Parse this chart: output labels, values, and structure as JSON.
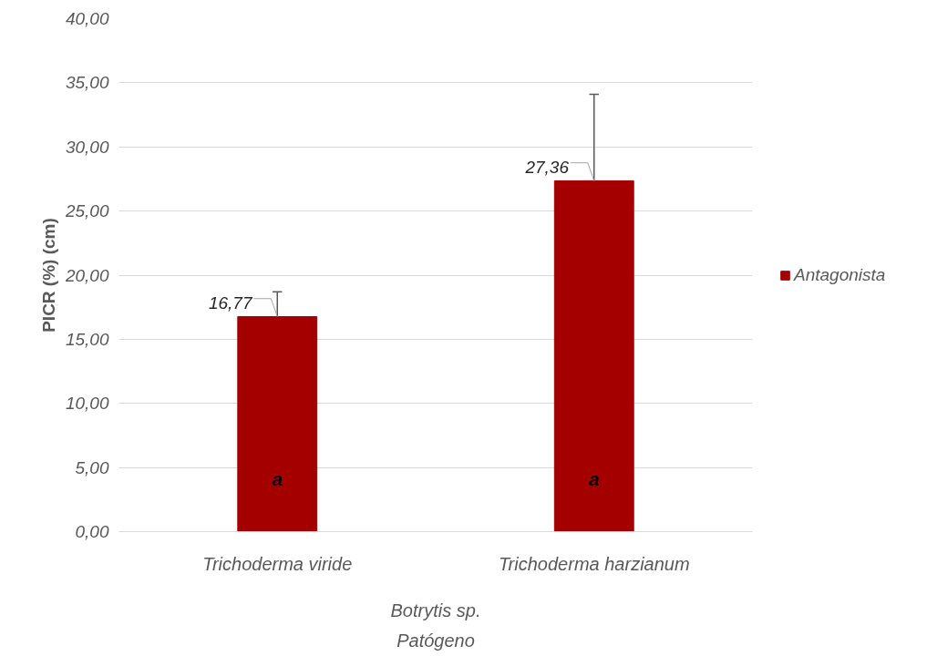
{
  "chart_data": {
    "type": "bar",
    "ylabel": "PICR (%) (cm)",
    "xlabel": "Patógeno",
    "categories": [
      "Trichoderma viride",
      "Trichoderma harzianum"
    ],
    "series": [
      {
        "name": "Antagonista",
        "color": "#a50000",
        "values": [
          16.77,
          27.36
        ],
        "errors": [
          [
            16.77,
            18.7
          ],
          [
            27.36,
            34.1
          ]
        ],
        "value_labels": [
          "16,77",
          "27,36"
        ]
      }
    ],
    "annotations": [
      "a",
      "a",
      "Botrytis sp."
    ],
    "ylim": [
      0,
      40
    ],
    "yticks": [
      {
        "value": 0,
        "label": "0,00"
      },
      {
        "value": 5,
        "label": "5,00"
      },
      {
        "value": 10,
        "label": "10,00"
      },
      {
        "value": 15,
        "label": "15,00"
      },
      {
        "value": 20,
        "label": "20,00"
      },
      {
        "value": 25,
        "label": "25,00"
      },
      {
        "value": 30,
        "label": "30,00"
      },
      {
        "value": 35,
        "label": "35,00"
      },
      {
        "value": 40,
        "label": "40,00"
      }
    ],
    "grid": "y",
    "legend": "right"
  }
}
